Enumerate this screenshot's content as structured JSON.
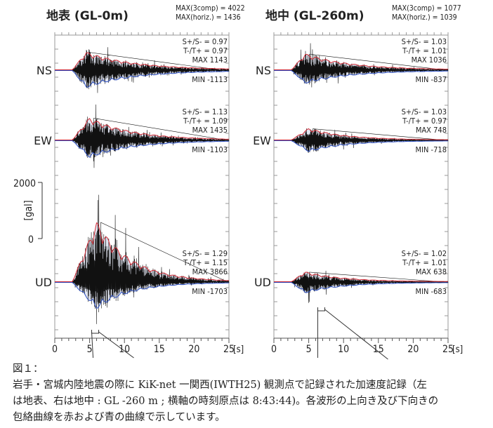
{
  "chart_data": {
    "type": "line",
    "xlabel": "[s]",
    "ylabel": "[gal]",
    "xlim": [
      0,
      25
    ],
    "xticks": [
      "0",
      "5",
      "10",
      "15",
      "20",
      "25"
    ],
    "yscale_ticks": [
      "2000",
      "0"
    ],
    "onset_s": 2.5,
    "panels": [
      {
        "title": "地表 (GL-0m)",
        "max3": "MAX(3comp) = 4022",
        "maxh": "MAX(horiz.) = 1436",
        "components": [
          {
            "name": "NS",
            "s": "S+/S- = 0.97",
            "t": "T-/T+ = 0.97",
            "max_label": "MAX  1143",
            "min_label": "MIN  -1113",
            "max": 1143,
            "min": -1113,
            "peak_s": 4.5,
            "decay": 0.14
          },
          {
            "name": "EW",
            "s": "S+/S- = 1.13",
            "t": "T-/T+ = 1.09",
            "max_label": "MAX  1435",
            "min_label": "MIN  -1103",
            "max": 1435,
            "min": -1103,
            "peak_s": 5,
            "decay": 0.16
          },
          {
            "name": "UD",
            "s": "S+/S- = 1.29",
            "t": "T-/T+ = 1.15",
            "max_label": "MAX  3866",
            "min_label": "MIN  -1703",
            "max": 3866,
            "min": -1703,
            "peak_s": 6,
            "decay": 0.2
          }
        ]
      },
      {
        "title": "地中 (GL-260m)",
        "max3": "MAX(3comp) = 1077",
        "maxh": "MAX(horiz.) = 1039",
        "components": [
          {
            "name": "NS",
            "s": "S+/S- = 1.03",
            "t": "T-/T+ = 1.01",
            "max_label": "MAX  1036",
            "min_label": "MIN  -837",
            "max": 1036,
            "min": -837,
            "peak_s": 4.5,
            "decay": 0.15
          },
          {
            "name": "EW",
            "s": "S+/S- = 1.03",
            "t": "T-/T+ = 0.97",
            "max_label": "MAX  748",
            "min_label": "MIN  -718",
            "max": 748,
            "min": -718,
            "peak_s": 5,
            "decay": 0.18
          },
          {
            "name": "UD",
            "s": "S+/S- = 1.02",
            "t": "T-/T+ = 1.01",
            "max_label": "MAX  638",
            "min_label": "MIN  -683",
            "max": 638,
            "min": -683,
            "peak_s": 4.5,
            "decay": 0.18
          }
        ]
      }
    ],
    "colors": {
      "upper_envelope": "#d42a35",
      "lower_envelope": "#2b4fc4",
      "waveform": "#111111"
    }
  },
  "caption": {
    "label": "図１：",
    "lines": [
      "岩手・宮城内陸地震の際に KiK-net 一関西(IWTH25) 観測点で記録された加速度記録（左",
      "は地表、右は地中 : GL -260 m ; 横軸の時刻原点は 8:43:44)。各波形の上向き及び下向きの",
      "包絡曲線を赤および青の曲線で示しています。"
    ]
  }
}
